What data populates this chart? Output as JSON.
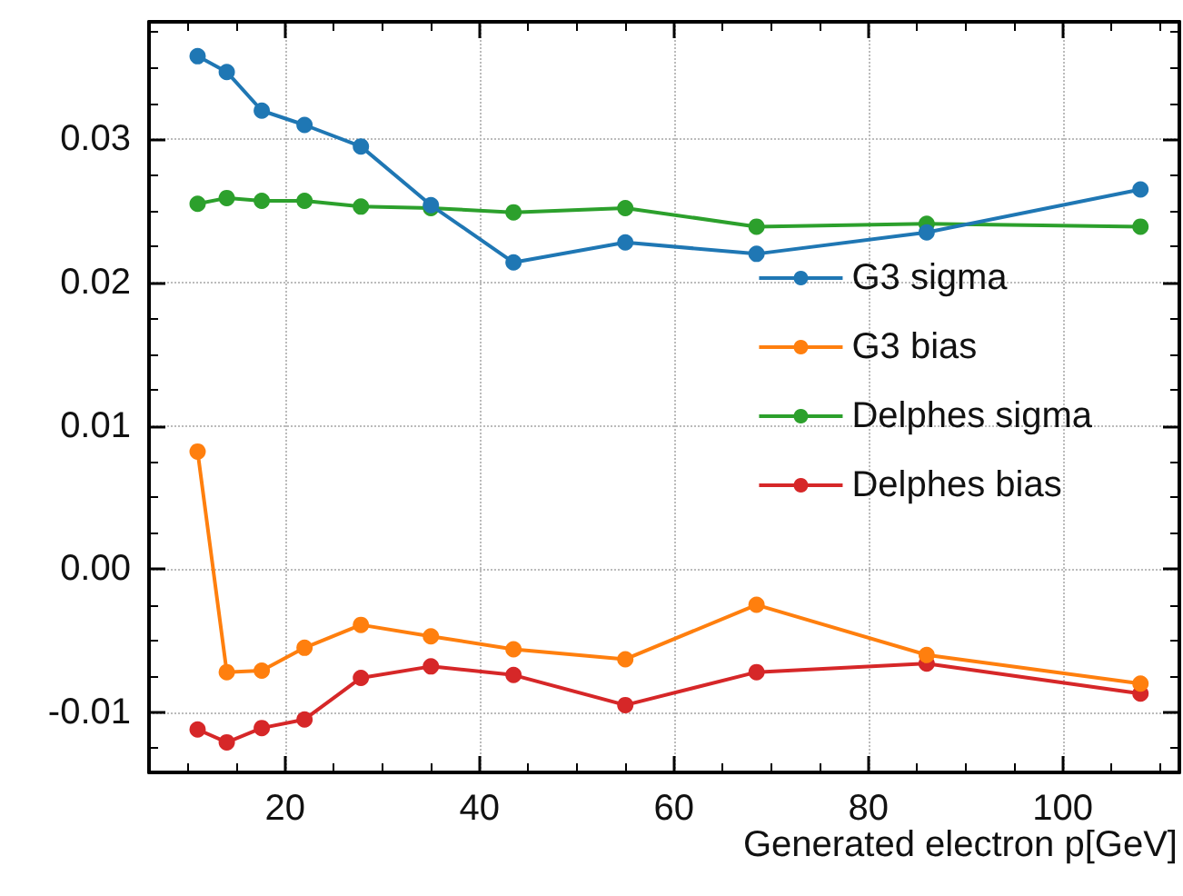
{
  "chart_data": {
    "type": "line",
    "xlabel": "Generated electron p[GeV]",
    "x": [
      11,
      14,
      17.6,
      22,
      27.8,
      35,
      43.5,
      55,
      68.5,
      86,
      108
    ],
    "series": [
      {
        "name": "G3 sigma",
        "color": "#1f77b4",
        "values": [
          0.0358,
          0.0347,
          0.032,
          0.031,
          0.0295,
          0.0254,
          0.0214,
          0.0228,
          0.022,
          0.0235,
          0.0265
        ]
      },
      {
        "name": "G3 bias",
        "color": "#ff7f0e",
        "values": [
          0.0082,
          -0.0072,
          -0.0071,
          -0.0055,
          -0.0039,
          -0.0047,
          -0.0056,
          -0.0063,
          -0.0025,
          -0.006,
          -0.008
        ]
      },
      {
        "name": "Delphes sigma",
        "color": "#2ca02c",
        "values": [
          0.0255,
          0.0259,
          0.0257,
          0.0257,
          0.0253,
          0.0252,
          0.0249,
          0.0252,
          0.0239,
          0.0241,
          0.0239
        ]
      },
      {
        "name": "Delphes bias",
        "color": "#d62728",
        "values": [
          -0.0112,
          -0.0121,
          -0.0111,
          -0.0105,
          -0.0076,
          -0.0068,
          -0.0074,
          -0.0095,
          -0.0072,
          -0.0066,
          -0.0087
        ]
      }
    ],
    "xlim": [
      6,
      112
    ],
    "xticks": [
      20,
      40,
      60,
      80,
      100
    ],
    "ylim": [
      -0.0142,
      0.0382
    ],
    "yticks": [
      {
        "value": -0.01,
        "label": "-0.01"
      },
      {
        "value": 0,
        "label": "0.00"
      },
      {
        "value": 0.01,
        "label": "0.01"
      },
      {
        "value": 0.02,
        "label": "0.02"
      },
      {
        "value": 0.03,
        "label": "0.03"
      }
    ],
    "grid": true,
    "legend": "right",
    "marker": "circle",
    "line_style": "solid"
  }
}
